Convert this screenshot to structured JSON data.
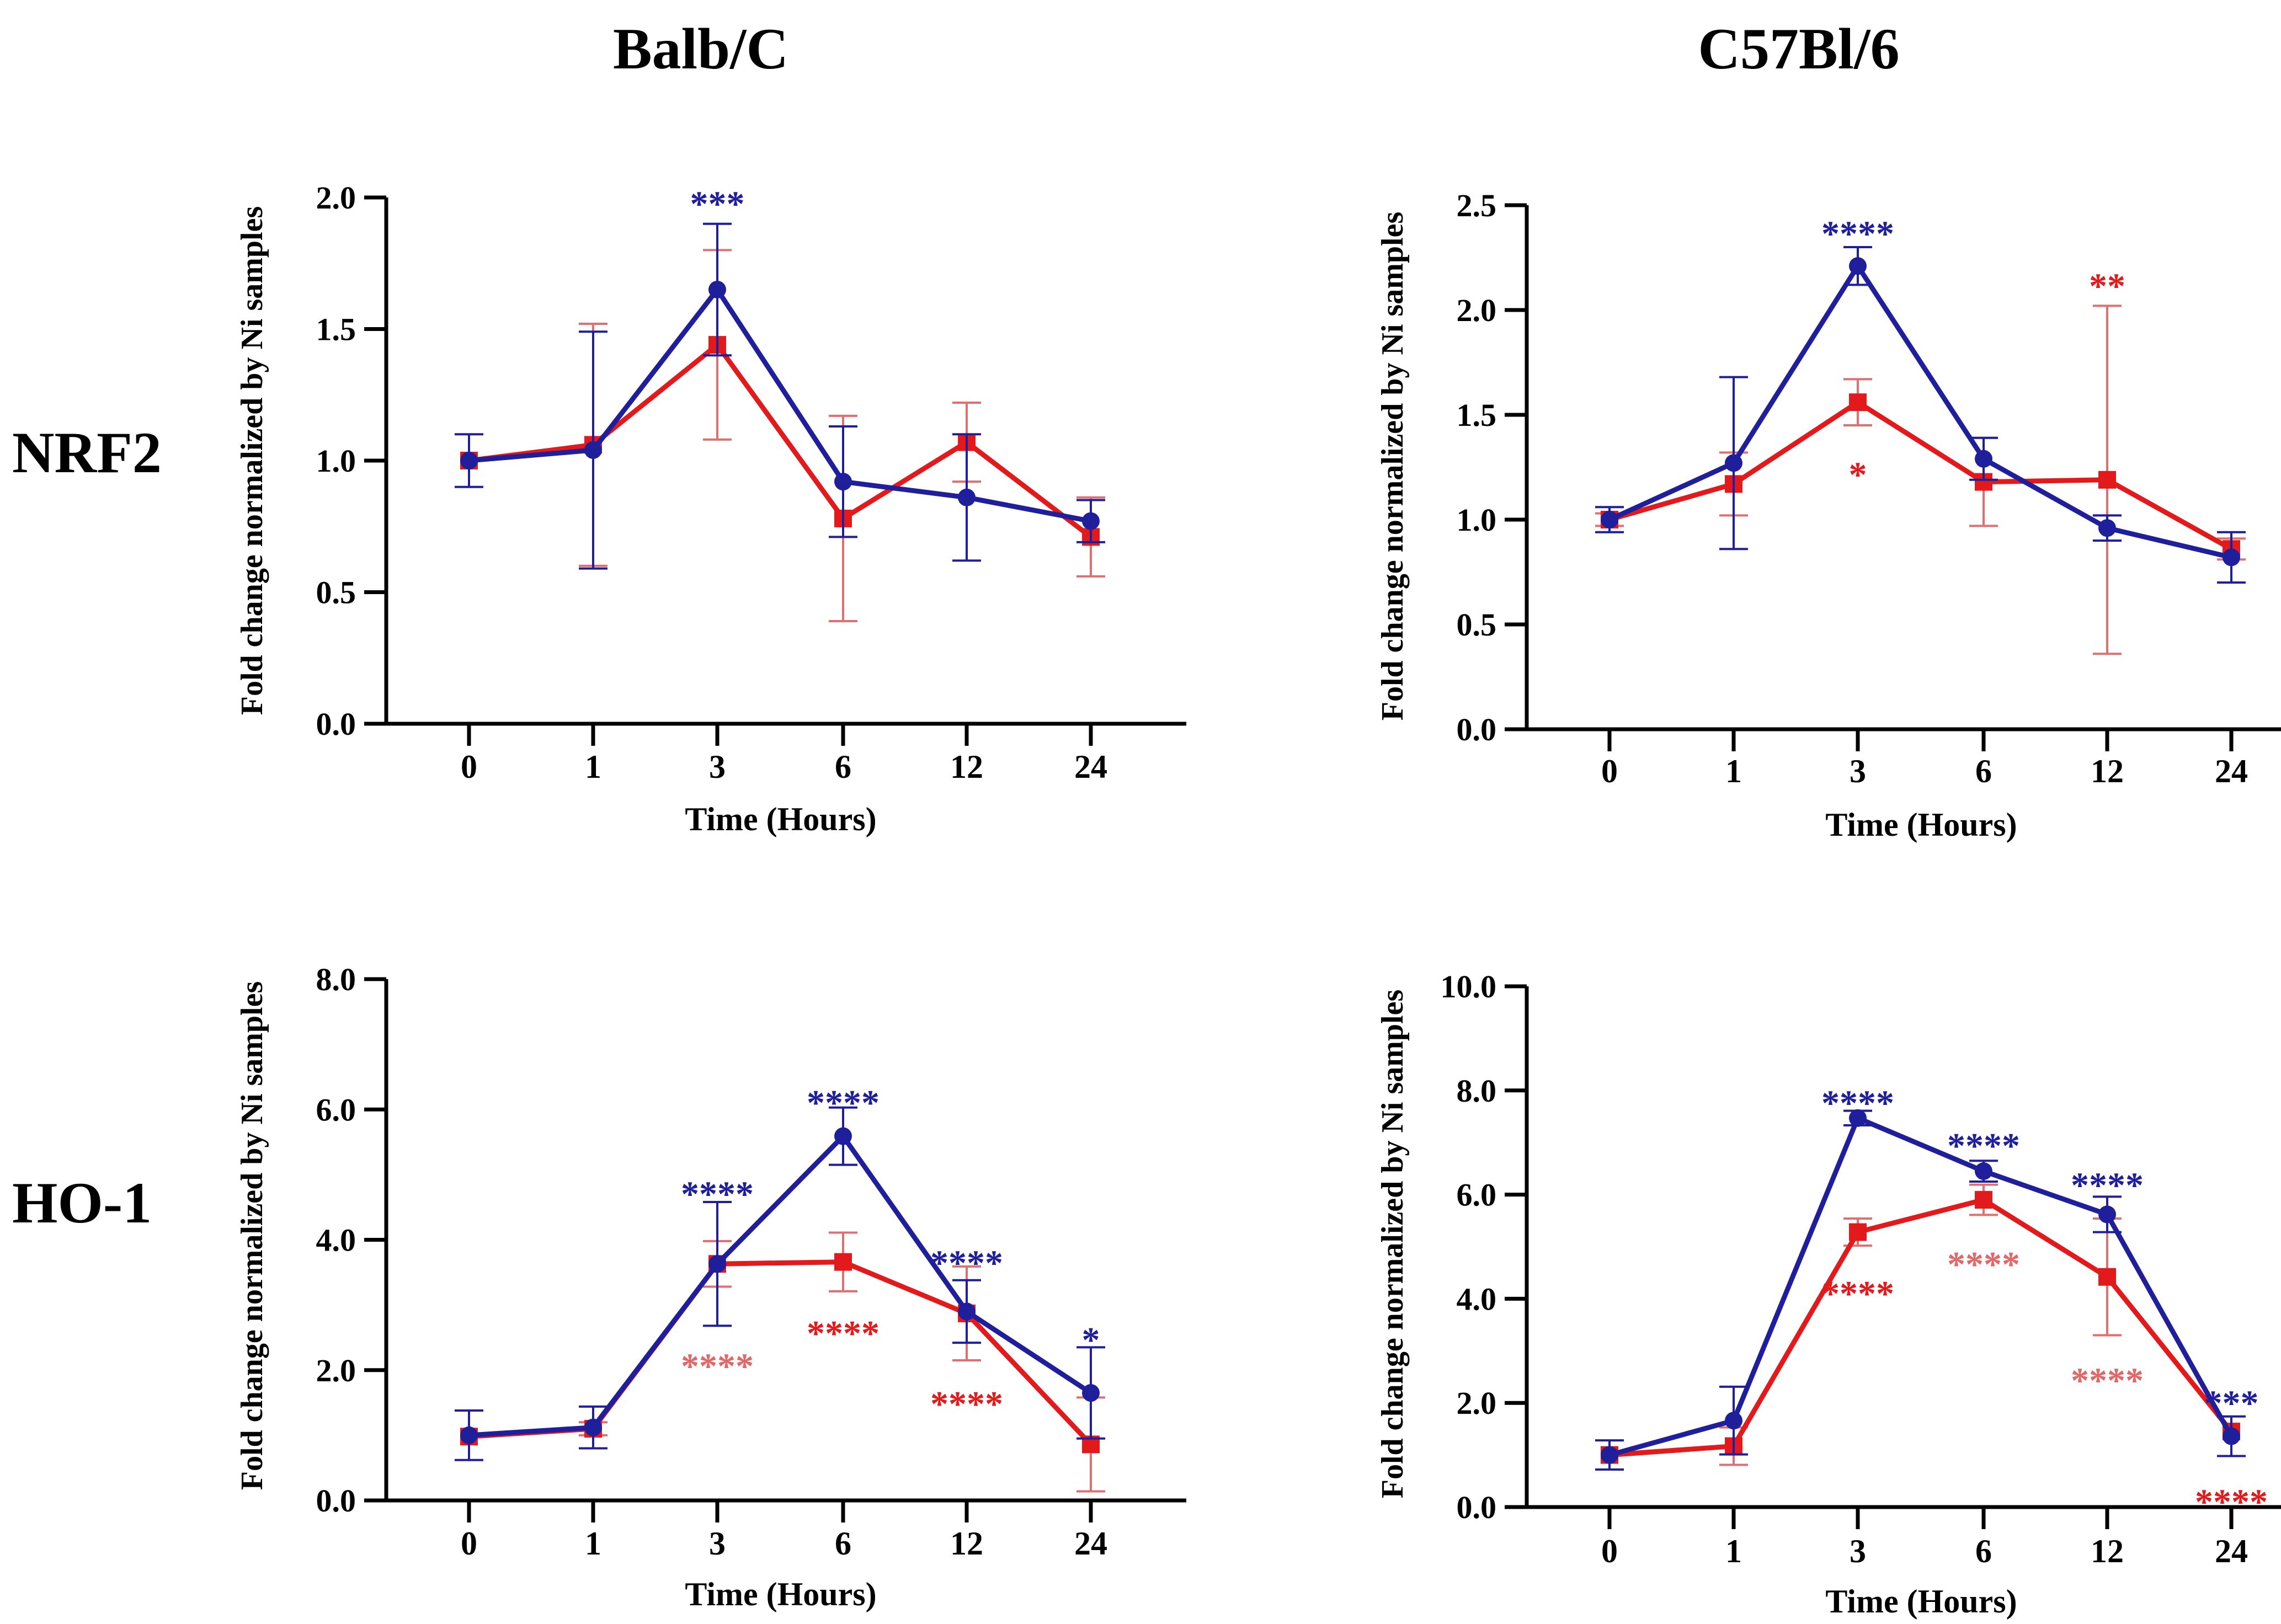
{
  "figure": {
    "column_titles": [
      "Balb/C",
      "C57Bl/6"
    ],
    "row_titles": [
      "NRF2",
      "HO-1"
    ]
  },
  "colors": {
    "blue_series": "#1f1f9c",
    "red_series": "#e31a1c",
    "red_light": "#e06868",
    "axis": "#000000"
  },
  "chart_data": [
    {
      "id": "nrf2-balbc",
      "type": "line",
      "title": "",
      "xlabel": "Time (Hours)",
      "ylabel": "Fold change normalized by Ni samples",
      "categories": [
        "0",
        "1",
        "3",
        "6",
        "12",
        "24"
      ],
      "ylim": [
        0,
        2.0
      ],
      "yticks": [
        0.0,
        0.5,
        1.0,
        1.5,
        2.0
      ],
      "ytick_labels": [
        "0.0",
        "0.5",
        "1.0",
        "1.5",
        "2.0"
      ],
      "series": [
        {
          "name": "blue",
          "marker": "circle",
          "color": "#1f1f9c",
          "values": [
            1.0,
            1.04,
            1.65,
            0.92,
            0.86,
            0.77
          ],
          "errors": [
            0.1,
            0.45,
            0.25,
            0.21,
            0.24,
            0.08
          ]
        },
        {
          "name": "red",
          "marker": "square",
          "color": "#e31a1c",
          "values": [
            1.0,
            1.06,
            1.44,
            0.78,
            1.07,
            0.71
          ],
          "errors": [
            0.0,
            0.46,
            0.36,
            0.39,
            0.15,
            0.15
          ]
        }
      ],
      "annotations": [
        {
          "text": "***",
          "category": "3",
          "y": 1.98,
          "series": "blue"
        }
      ]
    },
    {
      "id": "nrf2-c57",
      "type": "line",
      "title": "",
      "xlabel": "Time (Hours)",
      "ylabel": "Fold change normalized by Ni samples",
      "categories": [
        "0",
        "1",
        "3",
        "6",
        "12",
        "24"
      ],
      "ylim": [
        0,
        2.5
      ],
      "yticks": [
        0.0,
        0.5,
        1.0,
        1.5,
        2.0,
        2.5
      ],
      "ytick_labels": [
        "0.0",
        "0.5",
        "1.0",
        "1.5",
        "2.0",
        "2.5"
      ],
      "series": [
        {
          "name": "blue",
          "marker": "circle",
          "color": "#1f1f9c",
          "values": [
            1.0,
            1.27,
            2.21,
            1.29,
            0.96,
            0.82
          ],
          "errors": [
            0.06,
            0.41,
            0.09,
            0.1,
            0.06,
            0.12
          ]
        },
        {
          "name": "red",
          "marker": "square",
          "color": "#e31a1c",
          "values": [
            1.0,
            1.17,
            1.56,
            1.18,
            1.19,
            0.86
          ],
          "errors": [
            0.03,
            0.15,
            0.11,
            0.21,
            0.83,
            0.05
          ]
        }
      ],
      "annotations": [
        {
          "text": "****",
          "category": "3",
          "y": 2.37,
          "series": "blue"
        },
        {
          "text": "**",
          "category": "12",
          "y": 2.12,
          "series": "red"
        },
        {
          "text": "*",
          "category": "3",
          "y": 1.22,
          "series": "red"
        }
      ]
    },
    {
      "id": "ho1-balbc",
      "type": "line",
      "title": "",
      "xlabel": "Time (Hours)",
      "ylabel": "Fold change normalized by Ni samples",
      "categories": [
        "0",
        "1",
        "3",
        "6",
        "12",
        "24"
      ],
      "ylim": [
        0,
        8.0
      ],
      "yticks": [
        0.0,
        2.0,
        4.0,
        6.0,
        8.0
      ],
      "ytick_labels": [
        "0.0",
        "2.0",
        "4.0",
        "6.0",
        "8.0"
      ],
      "series": [
        {
          "name": "blue",
          "marker": "circle",
          "color": "#1f1f9c",
          "values": [
            1.0,
            1.12,
            3.63,
            5.59,
            2.9,
            1.65
          ],
          "errors": [
            0.38,
            0.32,
            0.95,
            0.44,
            0.48,
            0.7
          ]
        },
        {
          "name": "red",
          "marker": "square",
          "color": "#e31a1c",
          "values": [
            0.98,
            1.1,
            3.63,
            3.66,
            2.87,
            0.86
          ],
          "errors": [
            0.0,
            0.1,
            0.35,
            0.45,
            0.72,
            0.72
          ]
        }
      ],
      "annotations": [
        {
          "text": "****",
          "category": "3",
          "y": 4.72,
          "series": "blue"
        },
        {
          "text": "****",
          "category": "6",
          "y": 6.12,
          "series": "blue"
        },
        {
          "text": "****",
          "category": "12",
          "y": 3.66,
          "series": "blue"
        },
        {
          "text": "*",
          "category": "24",
          "y": 2.48,
          "series": "blue"
        },
        {
          "text": "****",
          "category": "3",
          "y": 2.08,
          "series": "red-light"
        },
        {
          "text": "****",
          "category": "6",
          "y": 2.58,
          "series": "red"
        },
        {
          "text": "****",
          "category": "12",
          "y": 1.5,
          "series": "red"
        }
      ]
    },
    {
      "id": "ho1-c57",
      "type": "line",
      "title": "",
      "xlabel": "Time (Hours)",
      "ylabel": "Fold change normalized by Ni samples",
      "categories": [
        "0",
        "1",
        "3",
        "6",
        "12",
        "24"
      ],
      "ylim": [
        0,
        10.0
      ],
      "yticks": [
        0.0,
        2.0,
        4.0,
        6.0,
        8.0,
        10.0
      ],
      "ytick_labels": [
        "0.0",
        "2.0",
        "4.0",
        "6.0",
        "8.0",
        "10.0"
      ],
      "series": [
        {
          "name": "blue",
          "marker": "circle",
          "color": "#1f1f9c",
          "values": [
            1.0,
            1.66,
            7.47,
            6.45,
            5.62,
            1.36
          ],
          "errors": [
            0.28,
            0.65,
            0.14,
            0.2,
            0.34,
            0.38
          ]
        },
        {
          "name": "red",
          "marker": "square",
          "color": "#e31a1c",
          "values": [
            1.0,
            1.17,
            5.28,
            5.9,
            4.42,
            1.45
          ],
          "errors": [
            0.0,
            0.36,
            0.26,
            0.29,
            1.12,
            0.0
          ]
        }
      ],
      "annotations": [
        {
          "text": "****",
          "category": "3",
          "y": 7.78,
          "series": "blue"
        },
        {
          "text": "****",
          "category": "6",
          "y": 6.96,
          "series": "blue"
        },
        {
          "text": "****",
          "category": "12",
          "y": 6.2,
          "series": "blue"
        },
        {
          "text": "***",
          "category": "24",
          "y": 2.02,
          "series": "blue"
        },
        {
          "text": "****",
          "category": "6",
          "y": 4.68,
          "series": "red-light"
        },
        {
          "text": "****",
          "category": "3",
          "y": 4.12,
          "series": "red"
        },
        {
          "text": "****",
          "category": "12",
          "y": 2.45,
          "series": "red-light"
        },
        {
          "text": "****",
          "category": "24",
          "y": 0.12,
          "series": "red"
        }
      ]
    }
  ]
}
